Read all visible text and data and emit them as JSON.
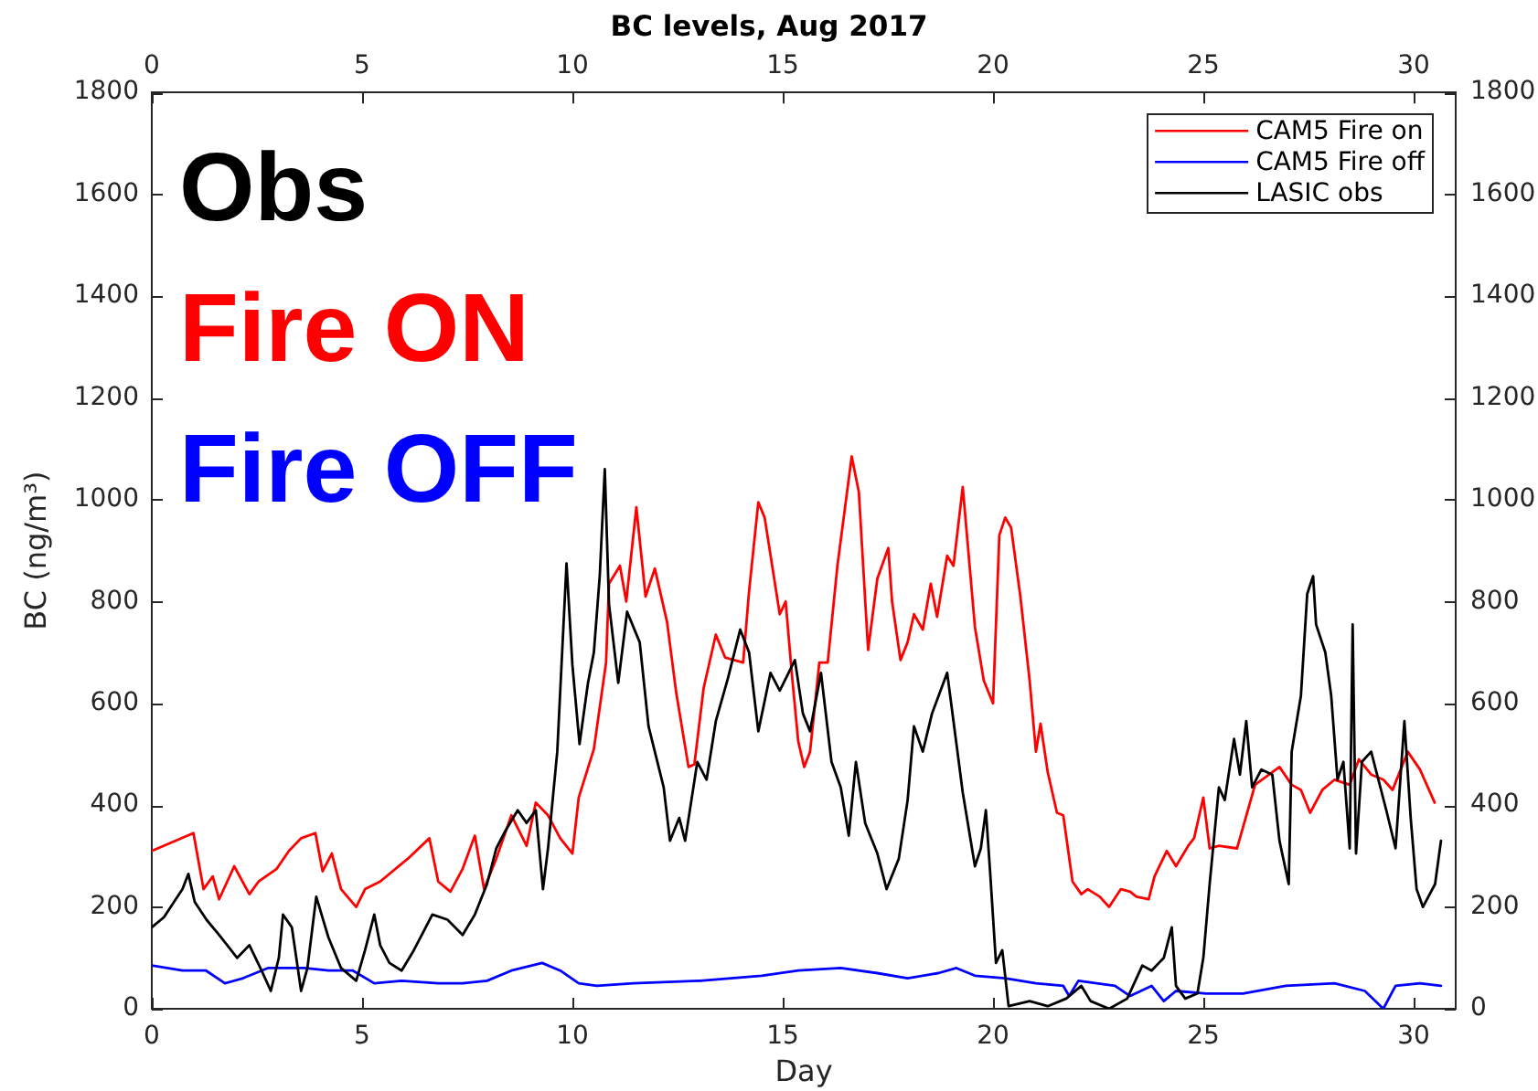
{
  "chart_data": {
    "type": "line",
    "title": "BC levels, Aug 2017",
    "xlabel": "Day",
    "ylabel": "BC (ng/m³)",
    "annotations": [
      "Obs",
      "Fire ON",
      "Fire OFF"
    ],
    "xlim": [
      0,
      31
    ],
    "xticks": [
      0,
      5,
      10,
      15,
      20,
      25,
      30
    ],
    "x2lim": [
      0,
      31
    ],
    "x2ticks": [
      0,
      5,
      10,
      15,
      20,
      25,
      30
    ],
    "ylim": [
      0,
      1800
    ],
    "yticks": [
      0,
      200,
      400,
      600,
      800,
      1000,
      1200,
      1400,
      1600,
      1800
    ],
    "y2lim": [
      0,
      1800
    ],
    "y2ticks": [
      0,
      200,
      400,
      600,
      800,
      1000,
      1200,
      1400,
      1600,
      1800
    ],
    "legend": "top right",
    "series": [
      {
        "name": "CAM5 Fire on",
        "color": "#ff0000",
        "x": [
          0,
          0.99,
          1.23,
          1.45,
          1.6,
          1.96,
          2.32,
          2.54,
          2.97,
          3.26,
          3.55,
          3.89,
          4.06,
          4.28,
          4.5,
          4.86,
          5.07,
          5.43,
          6.09,
          6.6,
          6.81,
          7.1,
          7.39,
          7.68,
          7.9,
          8.19,
          8.55,
          8.91,
          9.13,
          9.42,
          9.71,
          10,
          10.15,
          10.51,
          10.8,
          10.87,
          11.13,
          11.28,
          11.52,
          11.74,
          11.96,
          12.25,
          12.47,
          12.76,
          12.9,
          13.12,
          13.41,
          13.63,
          14.06,
          14.2,
          14.42,
          14.57,
          14.93,
          15.07,
          15.22,
          15.37,
          15.51,
          15.65,
          15.87,
          16.07,
          16.3,
          16.64,
          16.81,
          17.03,
          17.25,
          17.51,
          17.6,
          17.8,
          17.97,
          18.12,
          18.33,
          18.52,
          18.67,
          18.91,
          19.06,
          19.28,
          19.57,
          19.78,
          20,
          20.15,
          20.29,
          20.43,
          20.65,
          20.87,
          21.02,
          21.13,
          21.3,
          21.52,
          21.67,
          21.89,
          22.1,
          22.25,
          22.54,
          22.76,
          23.04,
          23.26,
          23.41,
          23.7,
          23.84,
          24.13,
          24.35,
          24.64,
          24.78,
          25,
          25.15,
          25.37,
          25.8,
          26.23,
          26.81,
          27.1,
          27.32,
          27.54,
          27.83,
          28.12,
          28.48,
          28.7,
          28.99,
          29.28,
          29.5,
          29.86,
          30.15,
          30.5
        ],
        "values": [
          310,
          345,
          235,
          260,
          215,
          280,
          225,
          250,
          275,
          310,
          335,
          345,
          270,
          305,
          235,
          200,
          235,
          250,
          295,
          335,
          250,
          230,
          275,
          340,
          235,
          295,
          380,
          320,
          405,
          380,
          335,
          305,
          415,
          510,
          680,
          835,
          870,
          800,
          985,
          810,
          865,
          760,
          620,
          475,
          480,
          630,
          735,
          690,
          680,
          820,
          995,
          965,
          775,
          800,
          655,
          525,
          475,
          505,
          680,
          680,
          870,
          1085,
          1015,
          705,
          845,
          905,
          800,
          685,
          720,
          775,
          745,
          835,
          770,
          890,
          870,
          1025,
          750,
          645,
          600,
          930,
          965,
          945,
          810,
          645,
          505,
          560,
          465,
          385,
          380,
          250,
          225,
          235,
          220,
          200,
          235,
          230,
          220,
          215,
          260,
          310,
          280,
          320,
          335,
          415,
          315,
          320,
          315,
          440,
          475,
          440,
          430,
          385,
          430,
          450,
          440,
          490,
          460,
          450,
          430,
          505,
          470,
          405
        ]
      },
      {
        "name": "CAM5 Fire off",
        "color": "#0000ff",
        "x": [
          0,
          0.73,
          1.29,
          1.74,
          2.17,
          2.76,
          3.63,
          4.2,
          4.78,
          5.29,
          5.94,
          6.81,
          7.39,
          7.97,
          8.55,
          9.28,
          9.71,
          10.15,
          10.58,
          11.45,
          13.04,
          14.5,
          15.37,
          16.38,
          17.25,
          17.97,
          18.7,
          19.13,
          19.57,
          20.29,
          21.02,
          21.67,
          21.81,
          22.03,
          22.9,
          23.26,
          23.77,
          24.06,
          24.35,
          25.07,
          25.94,
          26.96,
          28.12,
          28.84,
          29.28,
          29.57,
          30.15,
          30.65
        ],
        "values": [
          85,
          75,
          75,
          50,
          60,
          80,
          80,
          75,
          75,
          50,
          55,
          50,
          50,
          55,
          75,
          90,
          75,
          50,
          45,
          50,
          55,
          65,
          75,
          80,
          70,
          60,
          70,
          80,
          65,
          60,
          50,
          45,
          25,
          55,
          45,
          25,
          45,
          15,
          35,
          30,
          30,
          45,
          50,
          35,
          0,
          45,
          50,
          45
        ]
      },
      {
        "name": "LASIC obs",
        "color": "#000000",
        "x": [
          0,
          0.29,
          0.73,
          0.87,
          1.02,
          1.3,
          1.6,
          2.03,
          2.32,
          2.61,
          2.83,
          3.02,
          3.12,
          3.33,
          3.55,
          3.7,
          3.91,
          4.2,
          4.5,
          4.86,
          5.07,
          5.29,
          5.43,
          5.65,
          5.94,
          6.23,
          6.67,
          7.03,
          7.39,
          7.68,
          7.97,
          8.19,
          8.41,
          8.7,
          8.91,
          9.13,
          9.3,
          9.42,
          9.64,
          9.86,
          10,
          10.17,
          10.37,
          10.51,
          10.65,
          10.77,
          10.87,
          11.09,
          11.3,
          11.6,
          11.81,
          12.17,
          12.32,
          12.54,
          12.68,
          12.97,
          13.19,
          13.41,
          13.7,
          13.99,
          14.2,
          14.42,
          14.71,
          14.93,
          15.29,
          15.48,
          15.65,
          15.91,
          16.16,
          16.38,
          16.57,
          16.74,
          16.96,
          17.25,
          17.47,
          17.76,
          17.97,
          18.12,
          18.33,
          18.55,
          18.91,
          19.06,
          19.28,
          19.57,
          19.71,
          19.83,
          19.93,
          20.07,
          20.22,
          20.37,
          20.87,
          21.3,
          21.74,
          22.1,
          22.32,
          22.76,
          23.19,
          23.55,
          23.77,
          24.06,
          24.25,
          24.35,
          24.57,
          24.86,
          25,
          25.15,
          25.37,
          25.51,
          25.73,
          25.87,
          26.02,
          26.16,
          26.38,
          26.64,
          26.81,
          27.03,
          27.1,
          27.32,
          27.47,
          27.61,
          27.68,
          27.9,
          28.04,
          28.19,
          28.33,
          28.48,
          28.55,
          28.63,
          28.77,
          28.99,
          29.35,
          29.57,
          29.78,
          29.93,
          30.07,
          30.22,
          30.51,
          30.65
        ],
        "values": [
          160,
          180,
          235,
          265,
          210,
          175,
          145,
          100,
          125,
          75,
          35,
          100,
          185,
          160,
          35,
          80,
          220,
          140,
          80,
          55,
          115,
          185,
          125,
          90,
          75,
          115,
          185,
          175,
          145,
          185,
          245,
          315,
          350,
          390,
          365,
          390,
          235,
          315,
          505,
          875,
          675,
          520,
          640,
          700,
          850,
          1060,
          795,
          640,
          780,
          720,
          555,
          435,
          330,
          375,
          330,
          485,
          450,
          565,
          650,
          745,
          700,
          545,
          660,
          625,
          685,
          580,
          545,
          660,
          485,
          435,
          340,
          485,
          365,
          305,
          235,
          295,
          410,
          555,
          505,
          580,
          660,
          565,
          425,
          280,
          315,
          390,
          270,
          90,
          115,
          5,
          15,
          5,
          20,
          45,
          15,
          0,
          20,
          85,
          75,
          100,
          160,
          45,
          20,
          30,
          100,
          245,
          435,
          410,
          530,
          460,
          565,
          435,
          470,
          460,
          330,
          245,
          505,
          615,
          815,
          850,
          755,
          700,
          615,
          450,
          485,
          315,
          755,
          305,
          485,
          505,
          390,
          315,
          565,
          375,
          235,
          200,
          245,
          330
        ]
      }
    ]
  }
}
